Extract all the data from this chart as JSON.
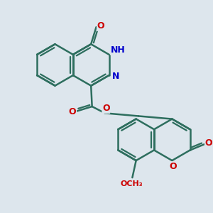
{
  "background_color": "#dde6ed",
  "bond_color": "#2d6e5e",
  "bond_width": 1.8,
  "atom_colors": {
    "O": "#cc0000",
    "N": "#0000cc",
    "H": "#888888",
    "C": "#2d6e5e"
  },
  "font_size": 9,
  "figsize": [
    3.0,
    3.0
  ],
  "dpi": 100
}
